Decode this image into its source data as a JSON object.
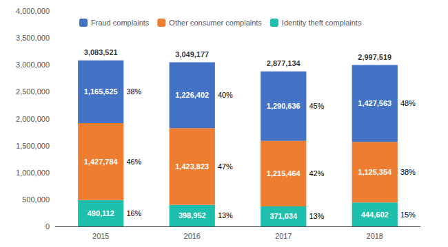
{
  "chart_data": {
    "type": "bar",
    "categories": [
      "2015",
      "2016",
      "2017",
      "2018"
    ],
    "stacked": true,
    "data_labels": true,
    "legend": "upper left",
    "grid": false,
    "ylim": [
      0,
      4000000
    ],
    "yticks": [
      0,
      {
        "value": 500000,
        "label": "500,000"
      },
      {
        "value": 1000000,
        "label": "1,000,000"
      },
      {
        "value": 1500000,
        "label": "1,500,000"
      },
      {
        "value": 2000000,
        "label": "2,000,000"
      },
      {
        "value": 2500000,
        "label": "2,500,000"
      },
      {
        "value": 3000000,
        "label": "3,000,000"
      },
      {
        "value": 3500000,
        "label": "3,500,000"
      },
      {
        "value": 4000000,
        "label": "4,000,000"
      }
    ],
    "series": [
      {
        "name": "Identity theft complaints",
        "color": "#1FBFAD",
        "values": [
          490112,
          398952,
          371034,
          444602
        ],
        "value_labels": [
          "490,112",
          "398,952",
          "371,034",
          "444,602"
        ],
        "share_labels": [
          "16%",
          "13%",
          "13%",
          "15%"
        ]
      },
      {
        "name": "Other consumer complaints",
        "color": "#ED7D31",
        "values": [
          1427784,
          1423823,
          1215464,
          1125354
        ],
        "value_labels": [
          "1,427,784",
          "1,423,823",
          "1,215,464",
          "1,125,354"
        ],
        "share_labels": [
          "46%",
          "47%",
          "42%",
          "38%"
        ]
      },
      {
        "name": "Fraud complaints",
        "color": "#4472C4",
        "values": [
          1165625,
          1226402,
          1290636,
          1427563
        ],
        "value_labels": [
          "1,165,625",
          "1,226,402",
          "1,290,636",
          "1,427,563"
        ],
        "share_labels": [
          "38%",
          "40%",
          "45%",
          "48%"
        ]
      }
    ],
    "totals": [
      3083521,
      3049177,
      2877134,
      2997519
    ],
    "total_labels": [
      "3,083,521",
      "3,049,177",
      "2,877,134",
      "2,997,519"
    ]
  }
}
